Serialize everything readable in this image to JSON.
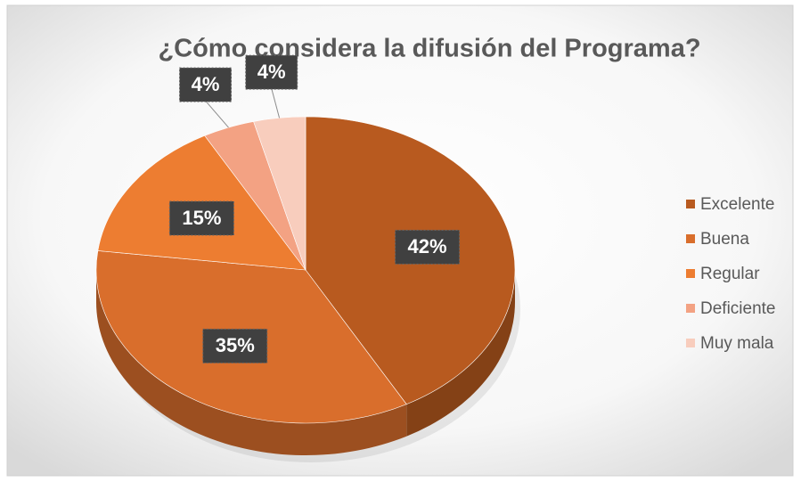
{
  "chart_data": {
    "type": "pie",
    "title": "¿Cómo considera la difusión del Programa?",
    "categories": [
      "Excelente",
      "Buena",
      "Regular",
      "Deficiente",
      "Muy mala"
    ],
    "values": [
      42,
      35,
      15,
      4,
      4
    ],
    "value_labels": [
      "42%",
      "35%",
      "15%",
      "4%",
      "4%"
    ],
    "colors": [
      "#b85a1f",
      "#d96e2c",
      "#ed7d31",
      "#f3a283",
      "#f8cdbd"
    ],
    "legend": "right"
  }
}
